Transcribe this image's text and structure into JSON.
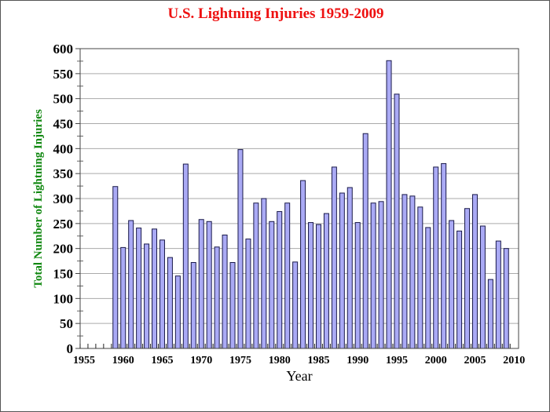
{
  "chart_data": {
    "type": "bar",
    "title": "U.S. Lightning Injuries 1959-2009",
    "xlabel": "Year",
    "ylabel": "Total Number of Lightning Injuries",
    "xlim": [
      1955,
      2010
    ],
    "ylim": [
      0,
      600
    ],
    "xticks": [
      "1955",
      "1960",
      "1965",
      "1970",
      "1975",
      "1980",
      "1985",
      "1990",
      "1995",
      "2000",
      "2005",
      "2010"
    ],
    "yticks": [
      "0",
      "50",
      "100",
      "150",
      "200",
      "250",
      "300",
      "350",
      "400",
      "450",
      "500",
      "550",
      "600"
    ],
    "grid": true,
    "x": [
      1959,
      1960,
      1961,
      1962,
      1963,
      1964,
      1965,
      1966,
      1967,
      1968,
      1969,
      1970,
      1971,
      1972,
      1973,
      1974,
      1975,
      1976,
      1977,
      1978,
      1979,
      1980,
      1981,
      1982,
      1983,
      1984,
      1985,
      1986,
      1987,
      1988,
      1989,
      1990,
      1991,
      1992,
      1993,
      1994,
      1995,
      1996,
      1997,
      1998,
      1999,
      2000,
      2001,
      2002,
      2003,
      2004,
      2005,
      2006,
      2007,
      2008,
      2009
    ],
    "values": [
      324,
      202,
      256,
      241,
      209,
      239,
      217,
      182,
      145,
      369,
      172,
      258,
      254,
      203,
      227,
      172,
      398,
      219,
      291,
      300,
      254,
      274,
      291,
      173,
      336,
      252,
      248,
      270,
      363,
      311,
      322,
      252,
      430,
      291,
      294,
      576,
      509,
      308,
      305,
      283,
      242,
      363,
      370,
      256,
      235,
      280,
      308,
      245,
      138,
      215,
      200
    ],
    "colors": {
      "bar": "#aaaaf5",
      "bar_edge": "#1a1a4a",
      "title": "#ee1111",
      "ylabel": "#118811",
      "grid": "#aaaaaa"
    }
  }
}
